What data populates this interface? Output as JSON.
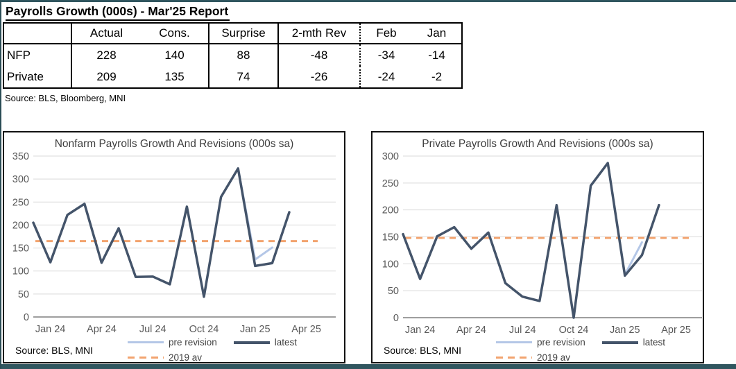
{
  "report": {
    "title": "Payrolls Growth (000s) - Mar'25 Report",
    "source": "Source: BLS, Bloomberg, MNI"
  },
  "table": {
    "columns": [
      "",
      "Actual",
      "Cons.",
      "Surprise",
      "2-mth Rev",
      "Feb",
      "Jan"
    ],
    "rows": [
      {
        "label": "NFP",
        "actual": "228",
        "cons": "140",
        "surprise": "88",
        "rev2": "-48",
        "feb": "-34",
        "jan": "-14"
      },
      {
        "label": "Private",
        "actual": "209",
        "cons": "135",
        "surprise": "74",
        "rev2": "-26",
        "feb": "-24",
        "jan": "-2"
      }
    ]
  },
  "chart_data": [
    {
      "type": "line",
      "title": "Nonfarm Payrolls Growth And Revisions (000s sa)",
      "source": "Source: BLS, MNI",
      "categories": [
        "Dec 23",
        "Jan 24",
        "Feb 24",
        "Mar 24",
        "Apr 24",
        "May 24",
        "Jun 24",
        "Jul 24",
        "Aug 24",
        "Sep 24",
        "Oct 24",
        "Nov 24",
        "Dec 24",
        "Jan 25",
        "Feb 25",
        "Mar 25"
      ],
      "x_tick_labels": [
        "Jan 24",
        "Apr 24",
        "Jul 24",
        "Oct 24",
        "Jan 25",
        "Apr 25"
      ],
      "ylim": [
        0,
        350
      ],
      "ytick_step": 50,
      "grid": true,
      "legend_position": "bottom",
      "series": [
        {
          "name": "pre revision",
          "color": "#b4c7e7",
          "start_index": 12,
          "values": [
            323,
            125,
            151
          ]
        },
        {
          "name": "latest",
          "color": "#44546a",
          "start_index": 0,
          "values": [
            205,
            119,
            222,
            246,
            118,
            193,
            87,
            88,
            71,
            240,
            44,
            261,
            323,
            111,
            117,
            228
          ]
        },
        {
          "name": "2019 av",
          "color": "#f2a36e",
          "style": "dashed",
          "constant": 165
        }
      ]
    },
    {
      "type": "line",
      "title": "Private Payrolls Growth And Revisions (000s sa)",
      "source": "Source: BLS, MNI",
      "categories": [
        "Dec 23",
        "Jan 24",
        "Feb 24",
        "Mar 24",
        "Apr 24",
        "May 24",
        "Jun 24",
        "Jul 24",
        "Aug 24",
        "Sep 24",
        "Oct 24",
        "Nov 24",
        "Dec 24",
        "Jan 25",
        "Feb 25",
        "Mar 25"
      ],
      "x_tick_labels": [
        "Jan 24",
        "Apr 24",
        "Jul 24",
        "Oct 24",
        "Jan 25",
        "Apr 25"
      ],
      "ylim": [
        0,
        300
      ],
      "ytick_step": 50,
      "grid": true,
      "legend_position": "bottom",
      "series": [
        {
          "name": "pre revision",
          "color": "#b4c7e7",
          "start_index": 12,
          "values": [
            287,
            80,
            140
          ]
        },
        {
          "name": "latest",
          "color": "#44546a",
          "start_index": 0,
          "values": [
            155,
            72,
            151,
            168,
            128,
            158,
            64,
            39,
            31,
            209,
            0,
            245,
            287,
            78,
            116,
            209
          ]
        },
        {
          "name": "2019 av",
          "color": "#f2a36e",
          "style": "dashed",
          "constant": 148
        }
      ]
    }
  ],
  "colors": {
    "latest_line": "#44546a",
    "pre_revision_line": "#b4c7e7",
    "avg_2019_line": "#f2a36e",
    "gridline": "#d9d9d9",
    "axis_line": "#7f7f7f",
    "tick_text": "#595959",
    "frame_border": "#30565f"
  }
}
